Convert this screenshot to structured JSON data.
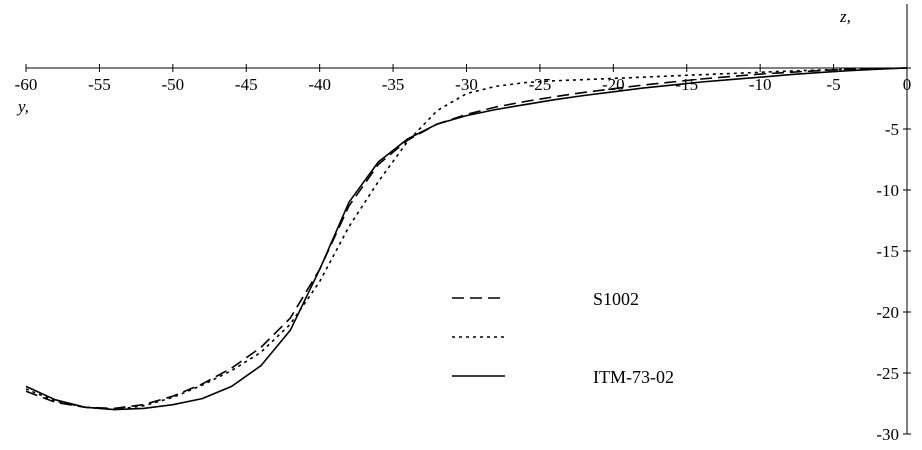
{
  "chart_data": {
    "type": "line",
    "xlabel": "y,",
    "ylabel": "z,",
    "xlim": [
      -60,
      0
    ],
    "ylim": [
      -30,
      0
    ],
    "grid": false,
    "legend_position": "lower-center",
    "x_ticks": [
      "-60",
      "-55",
      "-50",
      "-45",
      "-40",
      "-35",
      "-30",
      "-25",
      "-20",
      "-15",
      "-10",
      "-5",
      "0"
    ],
    "y_ticks": [
      "0",
      "-5",
      "-10",
      "-15",
      "-20",
      "-25",
      "-30"
    ],
    "series": [
      {
        "name": "S1002",
        "style": "dashed",
        "x": [
          -60,
          -58,
          -56,
          -54,
          -52,
          -50,
          -48,
          -46,
          -44,
          -42,
          -40,
          -38,
          -36,
          -34,
          -32,
          -30,
          -28,
          -26,
          -24,
          -22,
          -20,
          -18,
          -16,
          -14,
          -12,
          -10,
          -8,
          -6,
          -4,
          -2,
          0
        ],
        "y": [
          -26.5,
          -27.4,
          -27.8,
          -27.9,
          -27.6,
          -26.9,
          -25.9,
          -24.6,
          -22.9,
          -20.5,
          -16.5,
          -11.3,
          -7.9,
          -5.9,
          -4.6,
          -3.8,
          -3.2,
          -2.75,
          -2.35,
          -2.0,
          -1.7,
          -1.4,
          -1.15,
          -0.9,
          -0.7,
          -0.5,
          -0.35,
          -0.22,
          -0.1,
          -0.03,
          0
        ]
      },
      {
        "name": "",
        "style": "dotted",
        "x": [
          -60,
          -58,
          -56,
          -54,
          -52,
          -50,
          -48,
          -46,
          -44,
          -42,
          -40,
          -38,
          -36,
          -34,
          -32,
          -30,
          -28,
          -26,
          -24,
          -22,
          -20,
          -18,
          -16,
          -14,
          -12,
          -10,
          -8,
          -6,
          -4,
          -2,
          0
        ],
        "y": [
          -26.3,
          -27.3,
          -27.8,
          -28.0,
          -27.7,
          -27.0,
          -26.0,
          -24.8,
          -23.3,
          -21.0,
          -17.5,
          -13.0,
          -9.3,
          -6.0,
          -3.5,
          -2.1,
          -1.5,
          -1.2,
          -1.05,
          -0.95,
          -0.85,
          -0.75,
          -0.65,
          -0.55,
          -0.45,
          -0.35,
          -0.25,
          -0.17,
          -0.1,
          -0.04,
          0
        ]
      },
      {
        "name": "ITM-73-02",
        "style": "solid",
        "x": [
          -60,
          -58,
          -56,
          -54,
          -52,
          -50,
          -48,
          -46,
          -44,
          -42,
          -40,
          -38,
          -36,
          -34,
          -32,
          -30,
          -28,
          -26,
          -24,
          -22,
          -20,
          -18,
          -16,
          -14,
          -12,
          -10,
          -8,
          -6,
          -4,
          -2,
          0
        ],
        "y": [
          -26.1,
          -27.2,
          -27.8,
          -28.0,
          -27.9,
          -27.6,
          -27.1,
          -26.1,
          -24.4,
          -21.5,
          -16.5,
          -11.0,
          -7.7,
          -5.8,
          -4.6,
          -3.9,
          -3.4,
          -3.0,
          -2.6,
          -2.25,
          -1.95,
          -1.65,
          -1.4,
          -1.15,
          -0.95,
          -0.75,
          -0.55,
          -0.38,
          -0.22,
          -0.1,
          0
        ]
      }
    ]
  }
}
